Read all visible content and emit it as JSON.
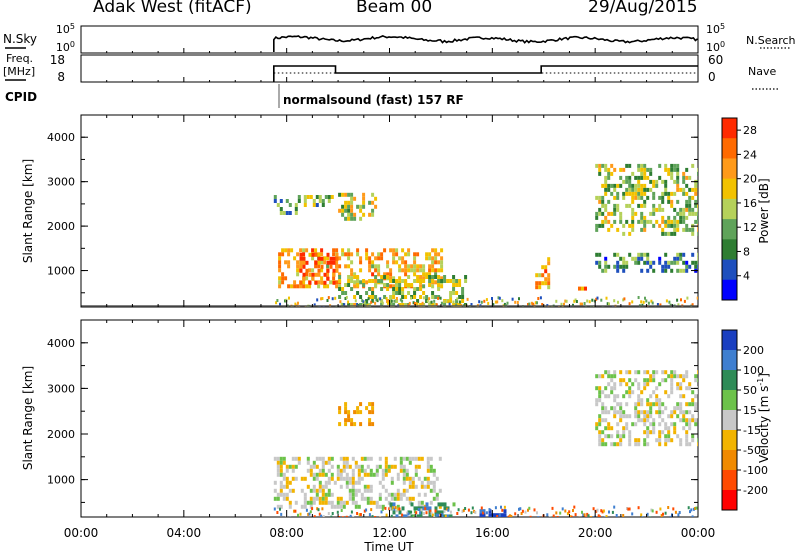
{
  "header": {
    "station": "Adak West (fitACF)",
    "beam": "Beam 00",
    "date": "29/Aug/2015"
  },
  "noise_panel": {
    "left_label": "N.Sky",
    "right_label": "N.Search",
    "ticks": [
      "10^5",
      "10^0"
    ],
    "data_start": "07:30"
  },
  "freq_panel": {
    "left_label_1": "Freq.",
    "left_label_2": "[MHz]",
    "left_ticks": [
      "18",
      "8"
    ],
    "right_label": "Nave",
    "right_ticks": [
      "60",
      "0"
    ]
  },
  "cpid": {
    "label": "CPID",
    "program": "normalsound (fast) 157 RF"
  },
  "colors": {
    "power": [
      "#0000ff",
      "#1e4fbd",
      "#2e7d32",
      "#5fa35a",
      "#b5d15a",
      "#f2c200",
      "#ff9a1a",
      "#ff6a00",
      "#ff2a00"
    ],
    "velocity_pos": [
      "#1a3fc0",
      "#3f7fd0",
      "#2e8b57",
      "#6cc24a"
    ],
    "velocity_mid": "#c8c8c8",
    "velocity_neg": [
      "#f2b400",
      "#f08a00",
      "#ff4a00",
      "#ff0000"
    ]
  },
  "chart_data": [
    {
      "type": "heatmap",
      "title": "Power",
      "xlabel": "",
      "ylabel": "Slant Range [km]",
      "colorbar_label": "Power [dB]",
      "colorbar_ticks": [
        "28",
        "24",
        "20",
        "16",
        "12",
        "8",
        "4"
      ],
      "colorbar_range": [
        0,
        30
      ],
      "y_ticks": [
        "4000",
        "3000",
        "2000",
        "1000"
      ],
      "ylim": [
        180,
        4500
      ],
      "xlim": [
        "00:00",
        "24:00"
      ],
      "grid": false,
      "features": [
        {
          "start": "07:30",
          "end": "08:30",
          "range_km": [
            2300,
            2700
          ],
          "level_db": 10
        },
        {
          "start": "08:40",
          "end": "09:50",
          "range_km": [
            2450,
            2700
          ],
          "level_db": 12
        },
        {
          "start": "10:00",
          "end": "11:30",
          "range_km": [
            2200,
            2750
          ],
          "level_db": 16
        },
        {
          "start": "07:40",
          "end": "14:00",
          "range_km": [
            600,
            1500
          ],
          "level_db": 20
        },
        {
          "start": "08:30",
          "end": "10:00",
          "range_km": [
            700,
            1400
          ],
          "level_db": 26
        },
        {
          "start": "10:00",
          "end": "15:00",
          "range_km": [
            250,
            900
          ],
          "level_db": 14
        },
        {
          "start": "17:40",
          "end": "18:10",
          "range_km": [
            600,
            1300
          ],
          "level_db": 20
        },
        {
          "start": "19:20",
          "end": "19:40",
          "range_km": [
            600,
            1000
          ],
          "level_db": 24
        },
        {
          "start": "20:00",
          "end": "24:00",
          "range_km": [
            1800,
            3400
          ],
          "level_db": 14
        },
        {
          "start": "20:00",
          "end": "24:00",
          "range_km": [
            1000,
            1400
          ],
          "level_db": 10
        }
      ]
    },
    {
      "type": "heatmap",
      "title": "Velocity",
      "xlabel": "Time UT",
      "ylabel": "Slant Range [km]",
      "colorbar_label": "Velocity [m s^-1]",
      "colorbar_ticks": [
        "200",
        "100",
        "50",
        "15",
        "-15",
        "-50",
        "-100",
        "-200"
      ],
      "colorbar_range": [
        -250,
        250
      ],
      "y_ticks": [
        "4000",
        "3000",
        "2000",
        "1000"
      ],
      "x_ticks": [
        "00:00",
        "04:00",
        "08:00",
        "12:00",
        "16:00",
        "20:00",
        "00:00"
      ],
      "ylim": [
        180,
        4500
      ],
      "xlim": [
        "00:00",
        "24:00"
      ],
      "grid": false,
      "features": [
        {
          "start": "07:30",
          "end": "14:00",
          "range_km": [
            400,
            1500
          ],
          "velocity": 0
        },
        {
          "start": "10:00",
          "end": "11:30",
          "range_km": [
            2200,
            2700
          ],
          "velocity": -40
        },
        {
          "start": "12:00",
          "end": "14:30",
          "range_km": [
            200,
            500
          ],
          "velocity": 60
        },
        {
          "start": "15:30",
          "end": "16:30",
          "range_km": [
            180,
            350
          ],
          "velocity": 150
        },
        {
          "start": "20:00",
          "end": "24:00",
          "range_km": [
            1800,
            3400
          ],
          "velocity": 0
        }
      ]
    }
  ]
}
